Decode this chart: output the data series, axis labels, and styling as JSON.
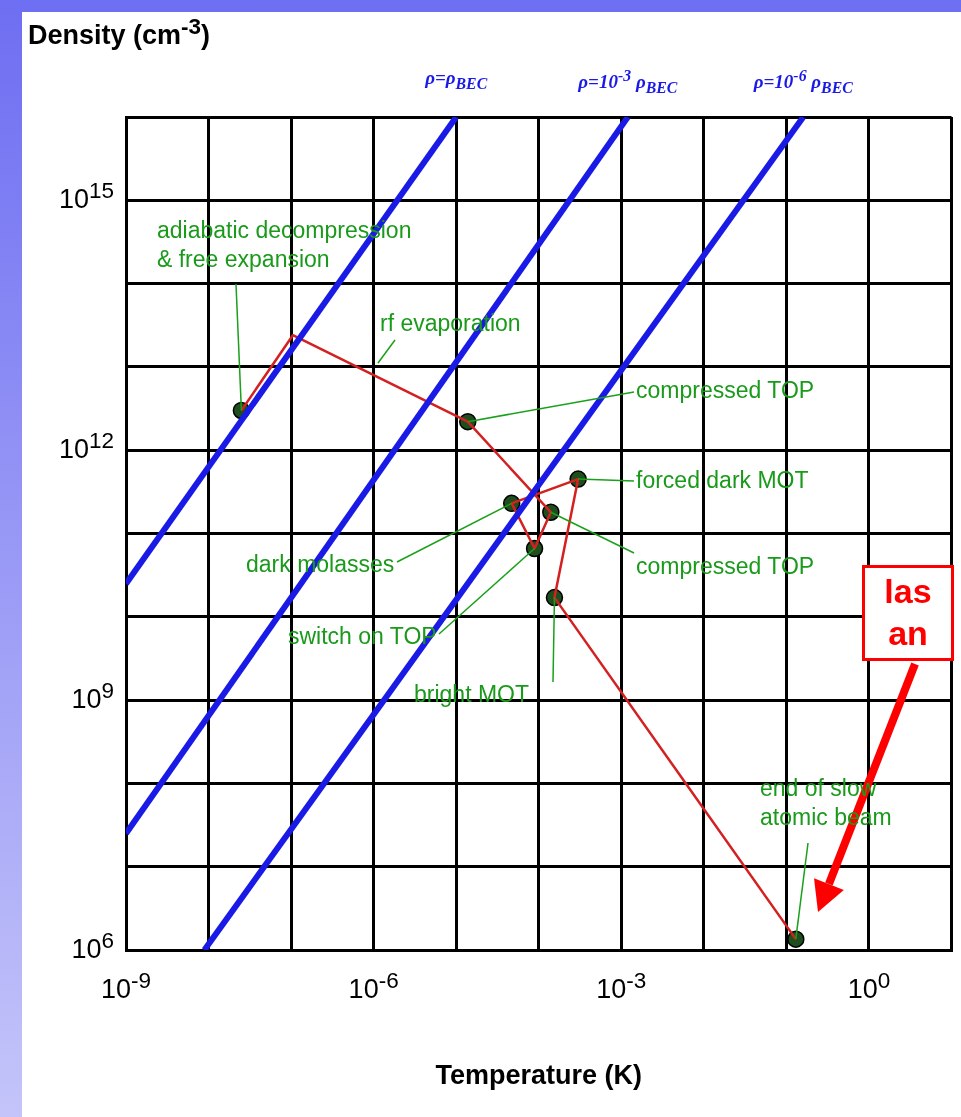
{
  "chart_data": {
    "type": "line",
    "xlabel": "Temperature (K)",
    "ylabel": "Density (cm$^{-3}$)",
    "log": "xy",
    "grid": true,
    "xlim": [
      1e-09,
      10
    ],
    "ylim": [
      1000000.0,
      1e+16
    ],
    "xticks": [
      {
        "value": 1e-09,
        "label": "10$^{-9}$"
      },
      {
        "value": 1e-08,
        "label": null
      },
      {
        "value": 1e-07,
        "label": null
      },
      {
        "value": 1e-06,
        "label": "10$^{-6}$"
      },
      {
        "value": 1e-05,
        "label": null
      },
      {
        "value": 0.0001,
        "label": null
      },
      {
        "value": 0.001,
        "label": "10$^{-3}$"
      },
      {
        "value": 0.01,
        "label": null
      },
      {
        "value": 0.1,
        "label": null
      },
      {
        "value": 1,
        "label": "10$^{0}$"
      },
      {
        "value": 10,
        "label": null
      }
    ],
    "yticks": [
      {
        "value": 1000000.0,
        "label": "10$^{6}$"
      },
      {
        "value": 10000000.0,
        "label": null
      },
      {
        "value": 100000000.0,
        "label": null
      },
      {
        "value": 1000000000.0,
        "label": "10$^{9}$"
      },
      {
        "value": 10000000000.0,
        "label": null
      },
      {
        "value": 100000000000.0,
        "label": null
      },
      {
        "value": 1000000000000.0,
        "label": "10$^{12}$"
      },
      {
        "value": 10000000000000.0,
        "label": null
      },
      {
        "value": 100000000000000.0,
        "label": null
      },
      {
        "value": 1000000000000000.0,
        "label": "10$^{15}$"
      },
      {
        "value": 1e+16,
        "label": null
      }
    ],
    "series": [
      {
        "name": "ρ=ρ$_{BEC}$",
        "marker": "none",
        "color": "#1a1ae6",
        "x": [
          1e-09,
          1e-05
        ],
        "values": [
          25000000000.0,
          1e+16
        ]
      },
      {
        "name": "ρ=10$^{-3}$ ρ$_{BEC}$",
        "marker": "none",
        "color": "#1a1ae6",
        "x": [
          1e-09,
          0.0012
        ],
        "values": [
          25000000.0,
          1e+16
        ]
      },
      {
        "name": "ρ=10$^{-6}$ ρ$_{BEC}$",
        "marker": "none",
        "color": "#1a1ae6",
        "x": [
          8.9e-09,
          0.16
        ],
        "values": [
          1000000.0,
          1e+16
        ]
      },
      {
        "marker": "none",
        "color": "#d42020",
        "x": [
          0.13,
          0.000155,
          0.0003,
          4.7e-05,
          8.9e-05,
          0.00014,
          1.38e-05,
          1.05e-07,
          2.5e-08
        ],
        "values": [
          1350000.0,
          17000000000.0,
          450000000000.0,
          230000000000.0,
          66000000000.0,
          180000000000.0,
          2200000000000.0,
          24000000000000.0,
          3000000000000.0
        ]
      },
      {
        "type": "scatter",
        "marker": "circle",
        "color": "#1e4d1e",
        "x": [
          0.13,
          0.000155,
          0.0003,
          4.7e-05,
          8.9e-05,
          0.00014,
          1.38e-05,
          2.5e-08
        ],
        "values": [
          1350000.0,
          17000000000.0,
          450000000000.0,
          230000000000.0,
          66000000000.0,
          180000000000.0,
          2200000000000.0,
          3000000000000.0
        ]
      }
    ],
    "annotations": [
      {
        "text": "adiabatic decompression\n& free expansion",
        "x": 2.5e-08,
        "y": 3000000000000.0
      },
      "rf evaporation",
      {
        "text": "compressed TOP",
        "x": 1.38e-05,
        "y": 2200000000000.0
      },
      {
        "text": "forced dark MOT",
        "x": 0.0003,
        "y": 450000000000.0
      },
      {
        "text": "compressed TOP",
        "x": 0.00014,
        "y": 180000000000.0
      },
      {
        "text": "dark molasses",
        "x": 4.7e-05,
        "y": 230000000000.0
      },
      {
        "text": "switch on TOP",
        "x": 8.9e-05,
        "y": 66000000000.0
      },
      {
        "text": "bright MOT",
        "x": 0.000155,
        "y": 17000000000.0
      },
      {
        "text": "end of slow\natomic beam",
        "x": 0.13,
        "y": 1350000.0
      },
      "las\nan"
    ]
  }
}
